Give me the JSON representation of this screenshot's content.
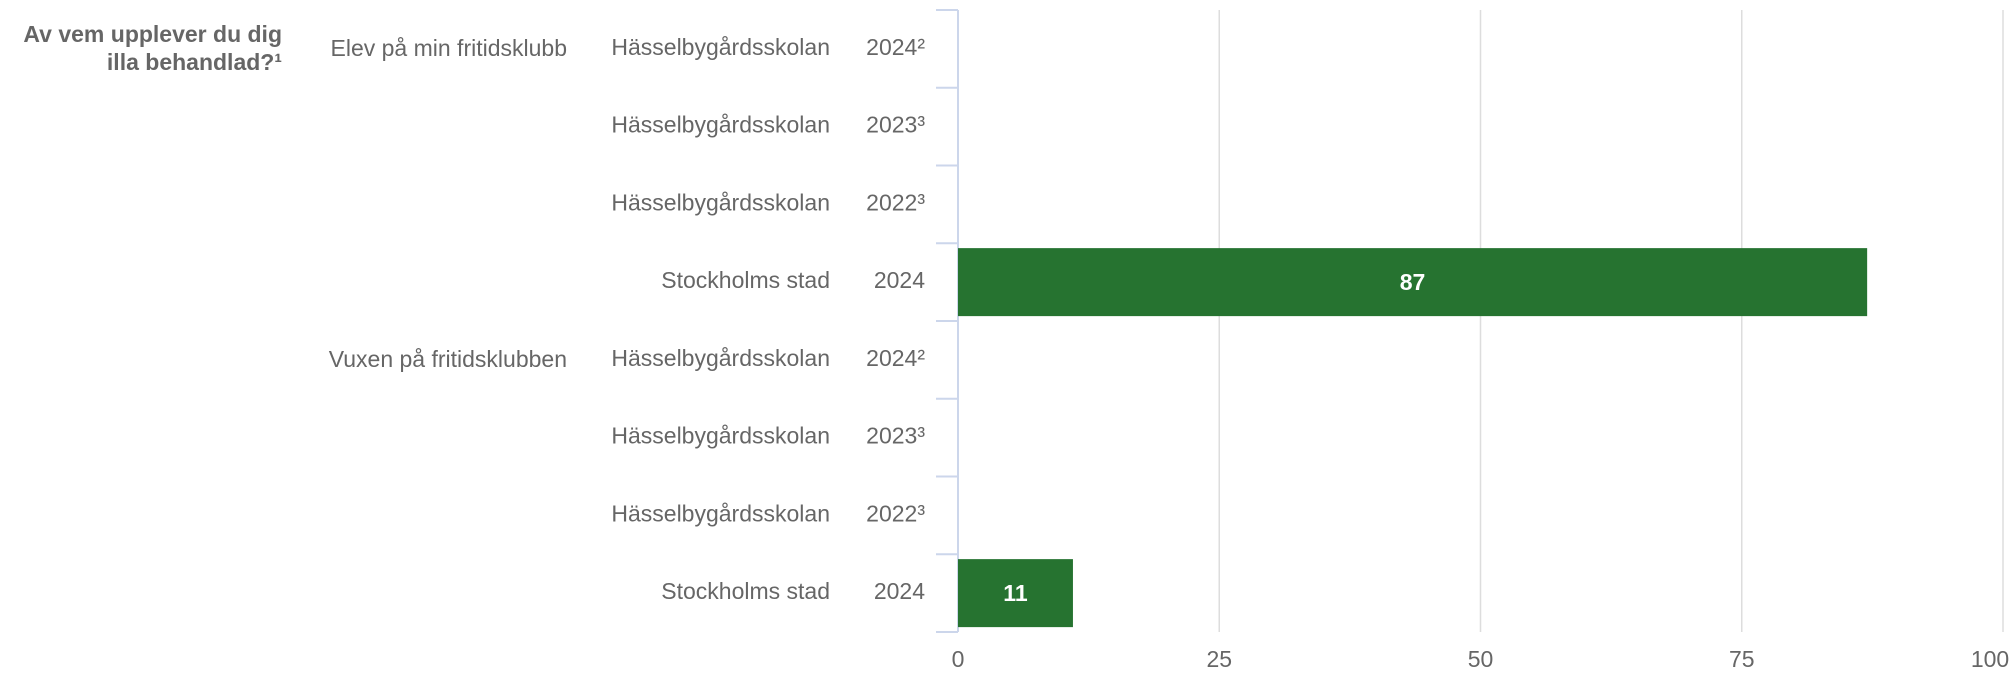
{
  "chart_data": {
    "type": "bar",
    "orientation": "horizontal",
    "title": "Av vem upplever du dig illa behandlad?¹",
    "categories": [
      {
        "group": "Elev på min fritidsklubb",
        "unit": "Hässelbygårdsskolan",
        "year": "2024²"
      },
      {
        "group": null,
        "unit": "Hässelbygårdsskolan",
        "year": "2023³"
      },
      {
        "group": null,
        "unit": "Hässelbygårdsskolan",
        "year": "2022³"
      },
      {
        "group": null,
        "unit": "Stockholms stad",
        "year": "2024"
      },
      {
        "group": "Vuxen på fritidsklubben",
        "unit": "Hässelbygårdsskolan",
        "year": "2024²"
      },
      {
        "group": null,
        "unit": "Hässelbygårdsskolan",
        "year": "2023³"
      },
      {
        "group": null,
        "unit": "Hässelbygårdsskolan",
        "year": "2022³"
      },
      {
        "group": null,
        "unit": "Stockholms stad",
        "year": "2024"
      }
    ],
    "values": [
      null,
      null,
      null,
      87,
      null,
      null,
      null,
      11
    ],
    "color": "#267330",
    "xlim": [
      0,
      100
    ],
    "xticks": [
      0,
      25,
      50,
      75,
      100
    ],
    "grid": true
  }
}
